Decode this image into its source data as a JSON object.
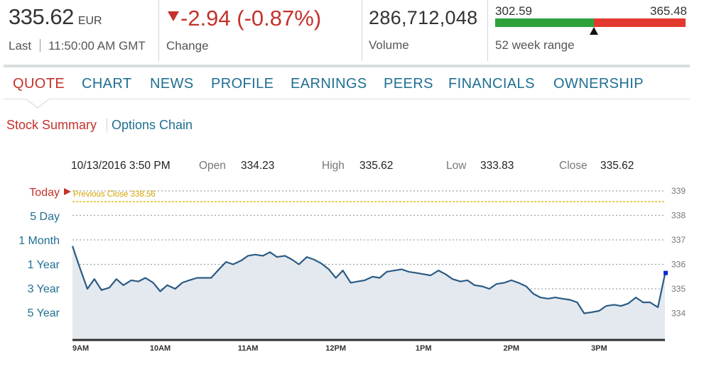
{
  "header": {
    "price": "335.62",
    "currency": "EUR",
    "last_label": "Last",
    "last_time": "11:50:00 AM GMT",
    "change": "-2.94 (-0.87%)",
    "change_label": "Change",
    "volume": "286,712,048",
    "volume_label": "Volume",
    "range_low": "302.59",
    "range_high": "365.48",
    "range_label": "52 week range",
    "range_position": 0.52
  },
  "tabs": [
    "QUOTE",
    "CHART",
    "NEWS",
    "PROFILE",
    "EARNINGS",
    "PEERS",
    "FINANCIALS",
    "OWNERSHIP"
  ],
  "subnav": {
    "stock_summary": "Stock Summary",
    "options_chain": "Options Chain"
  },
  "info": {
    "datetime": "10/13/2016 3:50 PM",
    "open_label": "Open",
    "open": "334.23",
    "high_label": "High",
    "high": "335.62",
    "low_label": "Low",
    "low": "333.83",
    "close_label": "Close",
    "close": "335.62"
  },
  "range_buttons": [
    "Today",
    "5 Day",
    "1 Month",
    "1 Year",
    "3 Year",
    "5 Year"
  ],
  "colors": {
    "accent_red": "#c4322b",
    "link_blue": "#1f6f93",
    "line": "#2b5b84",
    "area": "#e3e9ef",
    "previous_close": "#e2b400",
    "range_green": "#2ea13b",
    "range_red": "#e23a2e"
  },
  "chart_data": {
    "type": "area",
    "title": "",
    "xlabel": "",
    "ylabel": "",
    "x_tick_labels": [
      "9AM",
      "10AM",
      "11AM",
      "12PM",
      "1PM",
      "2PM",
      "3PM"
    ],
    "x_tick_values": [
      9,
      10,
      11,
      12,
      13,
      14,
      15
    ],
    "xlim": [
      9.0,
      15.75
    ],
    "ylim": [
      333.0,
      339.0
    ],
    "y_ticks": [
      334,
      335,
      336,
      337,
      338,
      339
    ],
    "grid": true,
    "previous_close": {
      "label": "Previous Close 338.56",
      "value": 338.56
    },
    "series": [
      {
        "x": [
          9.0,
          9.08,
          9.17,
          9.25,
          9.33,
          9.42,
          9.5,
          9.58,
          9.67,
          9.75,
          9.83,
          9.92,
          10.0,
          10.08,
          10.17,
          10.25,
          10.33,
          10.42,
          10.5,
          10.58,
          10.67,
          10.75,
          10.83,
          10.92,
          11.0,
          11.08,
          11.17,
          11.25,
          11.33,
          11.42,
          11.5,
          11.58,
          11.67,
          11.75,
          11.83,
          11.92,
          12.0,
          12.08,
          12.17,
          12.25,
          12.33,
          12.42,
          12.5,
          12.58,
          12.67,
          12.75,
          12.83,
          12.92,
          13.0,
          13.08,
          13.17,
          13.25,
          13.33,
          13.42,
          13.5,
          13.58,
          13.67,
          13.75,
          13.83,
          13.92,
          14.0,
          14.08,
          14.17,
          14.25,
          14.33,
          14.42,
          14.5,
          14.58,
          14.67,
          14.75,
          14.83,
          14.92,
          15.0,
          15.08,
          15.17,
          15.25,
          15.33,
          15.42,
          15.5,
          15.58,
          15.67,
          15.75
        ],
        "y": [
          336.75,
          335.9,
          335.0,
          335.4,
          334.95,
          335.05,
          335.4,
          335.15,
          335.35,
          335.3,
          335.45,
          335.25,
          334.9,
          335.15,
          335.0,
          335.25,
          335.35,
          335.45,
          335.45,
          335.45,
          335.8,
          336.1,
          336.0,
          336.15,
          336.35,
          336.4,
          336.35,
          336.5,
          336.3,
          336.35,
          336.2,
          336.0,
          336.3,
          336.2,
          336.05,
          335.8,
          335.45,
          335.75,
          335.25,
          335.3,
          335.35,
          335.5,
          335.45,
          335.7,
          335.75,
          335.8,
          335.7,
          335.65,
          335.6,
          335.55,
          335.75,
          335.6,
          335.4,
          335.3,
          335.35,
          335.15,
          335.1,
          335.0,
          335.2,
          335.25,
          335.35,
          335.25,
          335.1,
          334.8,
          334.65,
          334.6,
          334.65,
          334.6,
          334.55,
          334.45,
          334.0,
          334.05,
          334.1,
          334.3,
          334.35,
          334.3,
          334.4,
          334.65,
          334.45,
          334.45,
          334.25,
          335.6
        ]
      }
    ],
    "last_value": 335.62
  }
}
